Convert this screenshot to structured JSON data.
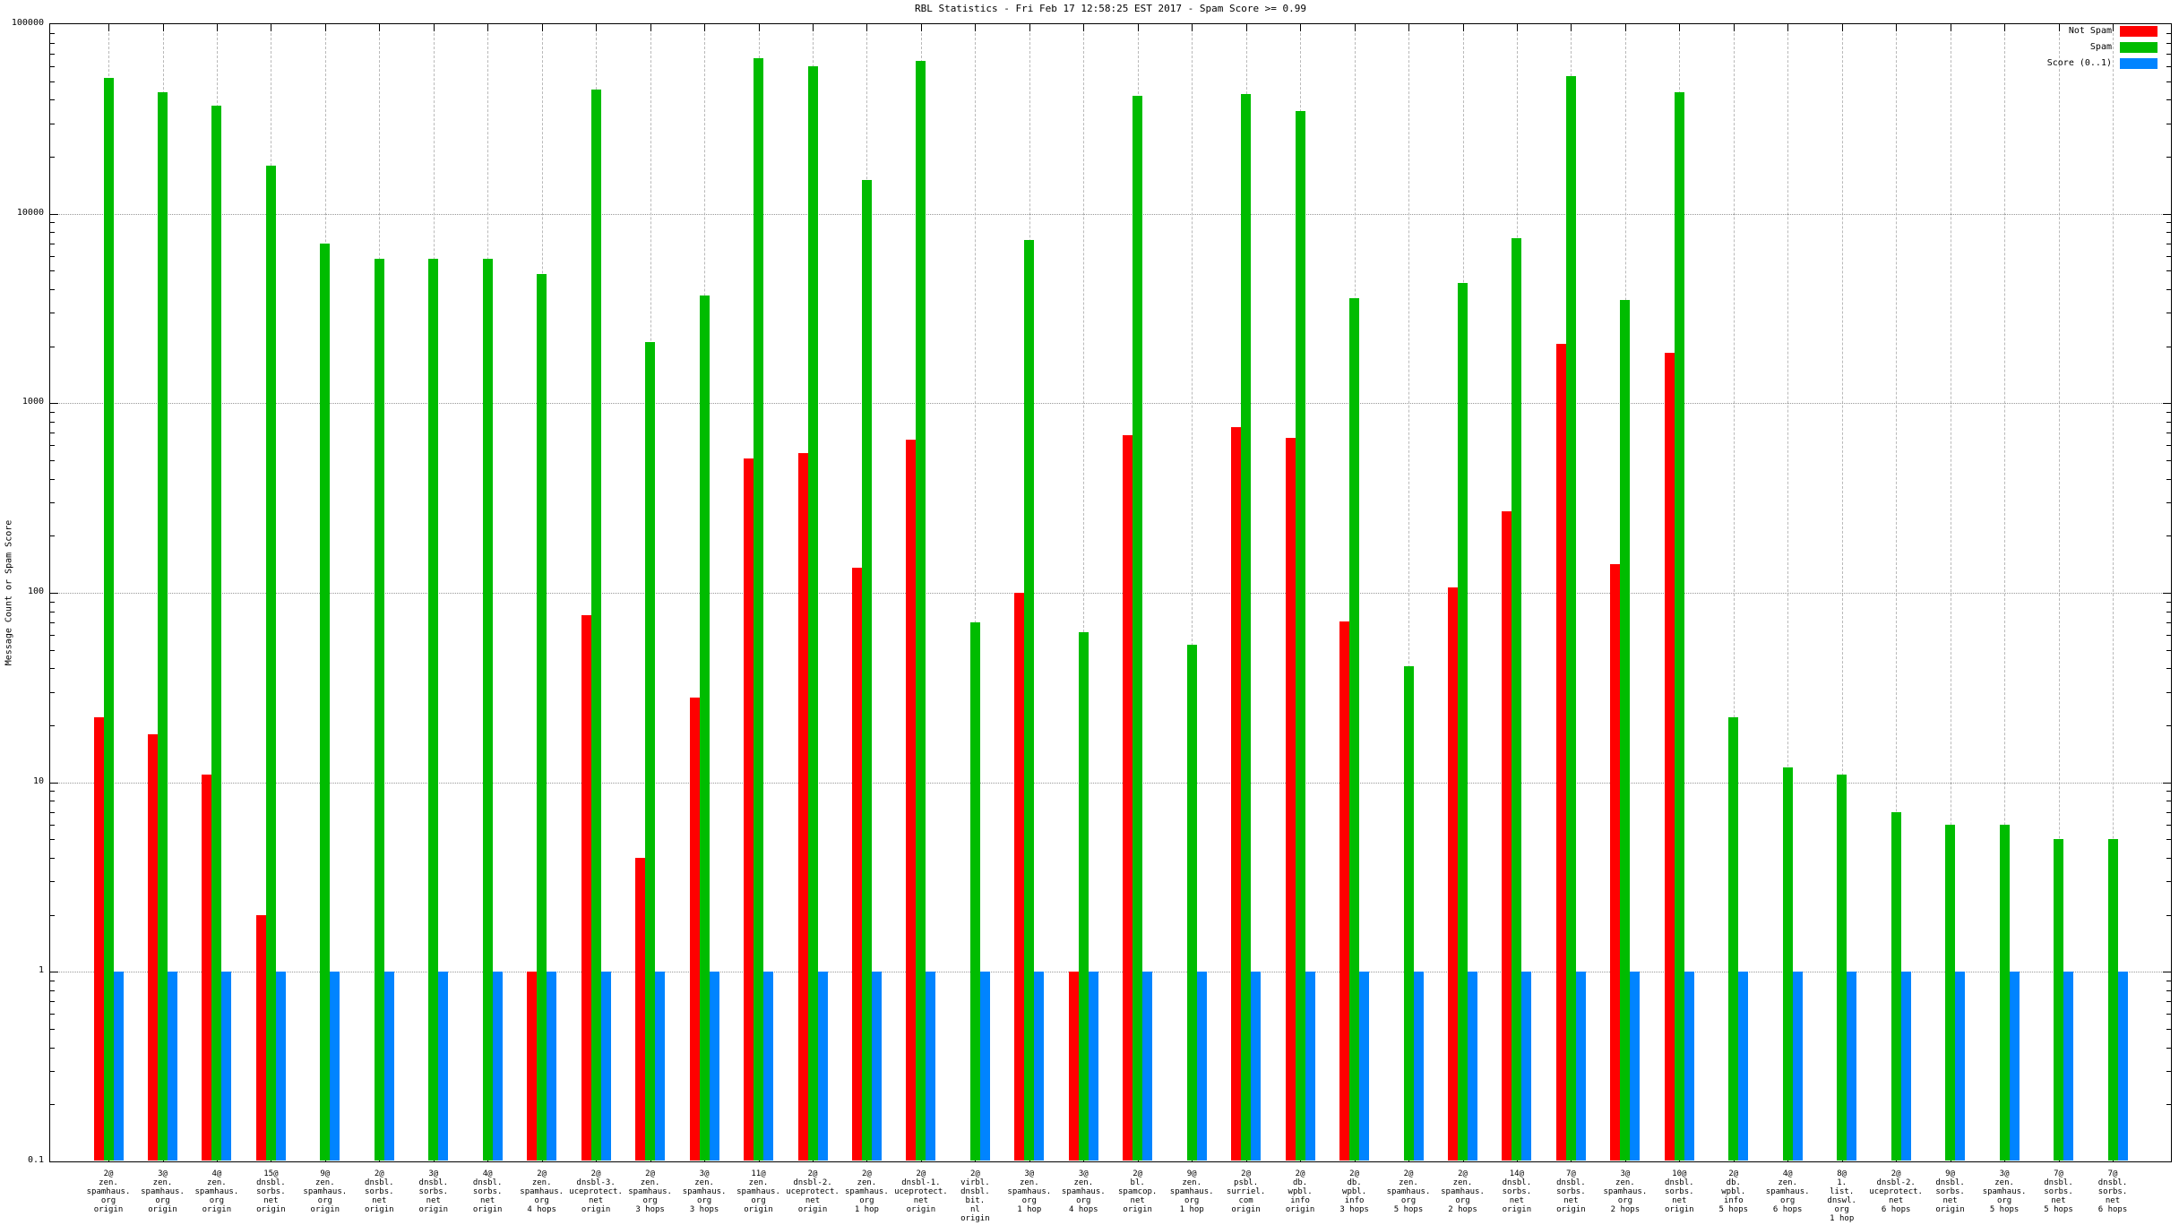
{
  "title": "RBL Statistics - Fri Feb 17 12:58:25 EST 2017 - Spam Score >= 0.99",
  "ylabel": "Message Count or Spam Score",
  "legend": [
    {
      "label": "Not Spam",
      "color": "#ff0000"
    },
    {
      "label": "Spam",
      "color": "#00bc00"
    },
    {
      "label": "Score (0..1)",
      "color": "#0084ff"
    }
  ],
  "chart_data": {
    "type": "bar",
    "yscale": "log",
    "ylim": [
      0.1,
      100000
    ],
    "yticks": [
      "100000",
      "10000",
      "1000",
      "100",
      "10",
      "1",
      "0.1"
    ],
    "grid": "major dotted horizontal, dashed vertical per category",
    "legend_position": "top-right",
    "series_names": [
      "Not Spam",
      "Spam",
      "Score (0..1)"
    ],
    "groups": [
      {
        "label_lines": [
          "2@",
          "zen.",
          "spamhaus.",
          "org",
          "origin"
        ],
        "not_spam": 22,
        "spam": 52000,
        "score": 1.0
      },
      {
        "label_lines": [
          "3@",
          "zen.",
          "spamhaus.",
          "org",
          "origin"
        ],
        "not_spam": 18,
        "spam": 44000,
        "score": 1.0
      },
      {
        "label_lines": [
          "4@",
          "zen.",
          "spamhaus.",
          "org",
          "origin"
        ],
        "not_spam": 11,
        "spam": 37000,
        "score": 1.0
      },
      {
        "label_lines": [
          "15@",
          "dnsbl.",
          "sorbs.",
          "net",
          "origin"
        ],
        "not_spam": 2,
        "spam": 18000,
        "score": 1.0
      },
      {
        "label_lines": [
          "9@",
          "zen.",
          "spamhaus.",
          "org",
          "origin"
        ],
        "not_spam": 0,
        "spam": 7000,
        "score": 1.0
      },
      {
        "label_lines": [
          "2@",
          "dnsbl.",
          "sorbs.",
          "net",
          "origin"
        ],
        "not_spam": 0,
        "spam": 5800,
        "score": 1.0
      },
      {
        "label_lines": [
          "3@",
          "dnsbl.",
          "sorbs.",
          "net",
          "origin"
        ],
        "not_spam": 0,
        "spam": 5800,
        "score": 1.0
      },
      {
        "label_lines": [
          "4@",
          "dnsbl.",
          "sorbs.",
          "net",
          "origin"
        ],
        "not_spam": 0,
        "spam": 5800,
        "score": 1.0
      },
      {
        "label_lines": [
          "2@",
          "zen.",
          "spamhaus.",
          "org",
          "4 hops"
        ],
        "not_spam": 1,
        "spam": 4800,
        "score": 1.0
      },
      {
        "label_lines": [
          "2@",
          "dnsbl-3.",
          "uceprotect.",
          "net",
          "origin"
        ],
        "not_spam": 76,
        "spam": 45000,
        "score": 1.0
      },
      {
        "label_lines": [
          "2@",
          "zen.",
          "spamhaus.",
          "org",
          "3 hops"
        ],
        "not_spam": 4,
        "spam": 2100,
        "score": 1.0
      },
      {
        "label_lines": [
          "3@",
          "zen.",
          "spamhaus.",
          "org",
          "3 hops"
        ],
        "not_spam": 28,
        "spam": 3700,
        "score": 1.0
      },
      {
        "label_lines": [
          "11@",
          "zen.",
          "spamhaus.",
          "org",
          "origin"
        ],
        "not_spam": 510,
        "spam": 66000,
        "score": 1.0
      },
      {
        "label_lines": [
          "2@",
          "dnsbl-2.",
          "uceprotect.",
          "net",
          "origin"
        ],
        "not_spam": 545,
        "spam": 60000,
        "score": 1.0
      },
      {
        "label_lines": [
          "2@",
          "zen.",
          "spamhaus.",
          "org",
          "1 hop"
        ],
        "not_spam": 135,
        "spam": 15000,
        "score": 1.0
      },
      {
        "label_lines": [
          "2@",
          "dnsbl-1.",
          "uceprotect.",
          "net",
          "origin"
        ],
        "not_spam": 640,
        "spam": 64000,
        "score": 1.0
      },
      {
        "label_lines": [
          "2@",
          "virbl.",
          "dnsbl.",
          "bit.",
          "nl",
          "origin"
        ],
        "not_spam": 0,
        "spam": 70,
        "score": 1.0
      },
      {
        "label_lines": [
          "3@",
          "zen.",
          "spamhaus.",
          "org",
          "1 hop"
        ],
        "not_spam": 100,
        "spam": 7300,
        "score": 1.0
      },
      {
        "label_lines": [
          "3@",
          "zen.",
          "spamhaus.",
          "org",
          "4 hops"
        ],
        "not_spam": 1,
        "spam": 62,
        "score": 1.0
      },
      {
        "label_lines": [
          "2@",
          "bl.",
          "spamcop.",
          "net",
          "origin"
        ],
        "not_spam": 680,
        "spam": 42000,
        "score": 1.0
      },
      {
        "label_lines": [
          "9@",
          "zen.",
          "spamhaus.",
          "org",
          "1 hop"
        ],
        "not_spam": 0,
        "spam": 53,
        "score": 1.0
      },
      {
        "label_lines": [
          "2@",
          "psbl.",
          "surriel.",
          "com",
          "origin"
        ],
        "not_spam": 750,
        "spam": 43000,
        "score": 1.0
      },
      {
        "label_lines": [
          "2@",
          "db.",
          "wpbl.",
          "info",
          "origin"
        ],
        "not_spam": 660,
        "spam": 35000,
        "score": 1.0
      },
      {
        "label_lines": [
          "2@",
          "db.",
          "wpbl.",
          "info",
          "3 hops"
        ],
        "not_spam": 71,
        "spam": 3600,
        "score": 1.0
      },
      {
        "label_lines": [
          "2@",
          "zen.",
          "spamhaus.",
          "org",
          "5 hops"
        ],
        "not_spam": 0,
        "spam": 41,
        "score": 1.0
      },
      {
        "label_lines": [
          "2@",
          "zen.",
          "spamhaus.",
          "org",
          "2 hops"
        ],
        "not_spam": 107,
        "spam": 4300,
        "score": 1.0
      },
      {
        "label_lines": [
          "14@",
          "dnsbl.",
          "sorbs.",
          "net",
          "origin"
        ],
        "not_spam": 270,
        "spam": 7400,
        "score": 1.0
      },
      {
        "label_lines": [
          "7@",
          "dnsbl.",
          "sorbs.",
          "net",
          "origin"
        ],
        "not_spam": 2070,
        "spam": 53000,
        "score": 1.0
      },
      {
        "label_lines": [
          "3@",
          "zen.",
          "spamhaus.",
          "org",
          "2 hops"
        ],
        "not_spam": 142,
        "spam": 3500,
        "score": 1.0
      },
      {
        "label_lines": [
          "10@",
          "dnsbl.",
          "sorbs.",
          "net",
          "origin"
        ],
        "not_spam": 1840,
        "spam": 44000,
        "score": 1.0
      },
      {
        "label_lines": [
          "2@",
          "db.",
          "wpbl.",
          "info",
          "5 hops"
        ],
        "not_spam": 0,
        "spam": 22,
        "score": 1.0
      },
      {
        "label_lines": [
          "4@",
          "zen.",
          "spamhaus.",
          "org",
          "6 hops"
        ],
        "not_spam": 0,
        "spam": 12,
        "score": 1.0
      },
      {
        "label_lines": [
          "8@",
          "1.",
          "list.",
          "dnswl.",
          "org",
          "1 hop"
        ],
        "not_spam": 0,
        "spam": 11,
        "score": 1.0
      },
      {
        "label_lines": [
          "2@",
          "dnsbl-2.",
          "uceprotect.",
          "net",
          "6 hops"
        ],
        "not_spam": 0,
        "spam": 7,
        "score": 1.0
      },
      {
        "label_lines": [
          "9@",
          "dnsbl.",
          "sorbs.",
          "net",
          "origin"
        ],
        "not_spam": 0,
        "spam": 6,
        "score": 1.0
      },
      {
        "label_lines": [
          "3@",
          "zen.",
          "spamhaus.",
          "org",
          "5 hops"
        ],
        "not_spam": 0,
        "spam": 6,
        "score": 1.0
      },
      {
        "label_lines": [
          "7@",
          "dnsbl.",
          "sorbs.",
          "net",
          "5 hops"
        ],
        "not_spam": 0,
        "spam": 5,
        "score": 1.0
      },
      {
        "label_lines": [
          "7@",
          "dnsbl.",
          "sorbs.",
          "net",
          "6 hops"
        ],
        "not_spam": 0,
        "spam": 5,
        "score": 1.0
      }
    ]
  }
}
